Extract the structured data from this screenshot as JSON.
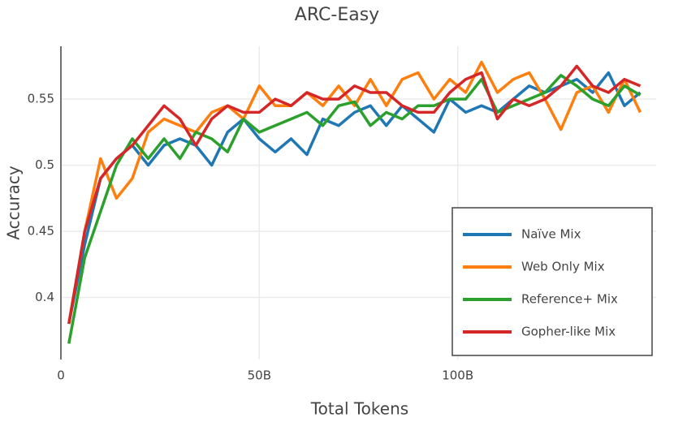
{
  "chart_data": {
    "type": "line",
    "title": "ARC-Easy",
    "x_label": "Total Tokens",
    "y_label": "Accuracy",
    "x": [
      2,
      6,
      10,
      14,
      18,
      22,
      26,
      30,
      34,
      38,
      42,
      46,
      50,
      54,
      58,
      62,
      66,
      70,
      74,
      78,
      82,
      86,
      90,
      94,
      98,
      102,
      106,
      110,
      114,
      118,
      122,
      126,
      130,
      134,
      138,
      142,
      146
    ],
    "series": [
      {
        "name": "Naïve Mix",
        "color": "#1f77b4",
        "values": [
          0.38,
          0.44,
          0.49,
          0.505,
          0.515,
          0.5,
          0.515,
          0.52,
          0.515,
          0.5,
          0.525,
          0.535,
          0.52,
          0.51,
          0.52,
          0.508,
          0.535,
          0.53,
          0.54,
          0.545,
          0.53,
          0.545,
          0.535,
          0.525,
          0.55,
          0.54,
          0.545,
          0.54,
          0.55,
          0.56,
          0.555,
          0.56,
          0.565,
          0.555,
          0.57,
          0.545,
          0.555
        ]
      },
      {
        "name": "Web Only Mix",
        "color": "#ff7f0e",
        "values": [
          0.38,
          0.45,
          0.505,
          0.475,
          0.49,
          0.525,
          0.535,
          0.53,
          0.525,
          0.54,
          0.545,
          0.535,
          0.56,
          0.545,
          0.545,
          0.555,
          0.545,
          0.56,
          0.545,
          0.565,
          0.545,
          0.565,
          0.57,
          0.55,
          0.565,
          0.555,
          0.578,
          0.555,
          0.565,
          0.57,
          0.55,
          0.527,
          0.555,
          0.56,
          0.54,
          0.565,
          0.54
        ]
      },
      {
        "name": "Reference+ Mix",
        "color": "#2ca02c",
        "values": [
          0.365,
          0.43,
          0.465,
          0.5,
          0.52,
          0.505,
          0.52,
          0.505,
          0.525,
          0.52,
          0.51,
          0.535,
          0.525,
          0.53,
          0.535,
          0.54,
          0.53,
          0.545,
          0.548,
          0.53,
          0.54,
          0.535,
          0.545,
          0.545,
          0.55,
          0.55,
          0.565,
          0.54,
          0.545,
          0.55,
          0.555,
          0.568,
          0.56,
          0.55,
          0.545,
          0.56,
          0.553
        ]
      },
      {
        "name": "Gopher-like Mix",
        "color": "#d62728",
        "values": [
          0.38,
          0.45,
          0.49,
          0.505,
          0.515,
          0.53,
          0.545,
          0.535,
          0.515,
          0.535,
          0.545,
          0.54,
          0.54,
          0.55,
          0.545,
          0.555,
          0.55,
          0.55,
          0.56,
          0.555,
          0.555,
          0.545,
          0.54,
          0.54,
          0.555,
          0.565,
          0.57,
          0.535,
          0.55,
          0.545,
          0.55,
          0.56,
          0.575,
          0.56,
          0.555,
          0.565,
          0.56
        ]
      }
    ],
    "xlim": [
      0,
      150
    ],
    "xticks": [
      0,
      {
        "value": 50,
        "label": "50B"
      },
      {
        "value": 100,
        "label": "100B"
      }
    ],
    "ylim": [
      0.353,
      0.59
    ],
    "yticks": [
      0.4,
      0.45,
      0.5,
      0.55
    ],
    "grid": true,
    "legend": "lower right"
  }
}
